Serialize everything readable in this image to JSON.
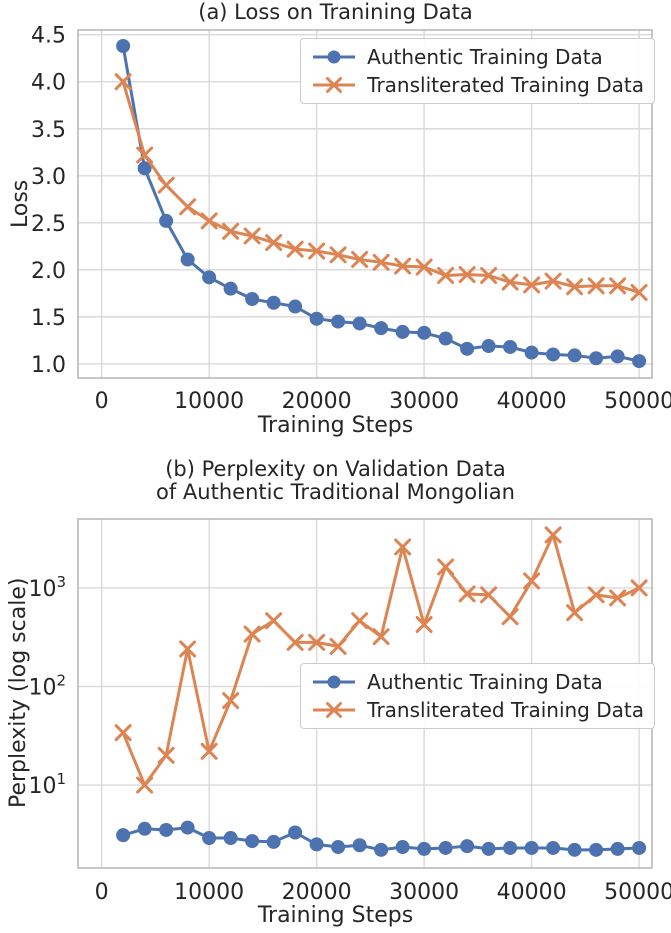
{
  "figure": {
    "background": "#ffffff",
    "text_color": "#262626",
    "grid_color": "#d9d9d9",
    "spine_color": "#b9b9b9"
  },
  "chart_data": [
    {
      "type": "line",
      "title": "(a) Loss on Tranining Data",
      "xlabel": "Training Steps",
      "ylabel": "Loss",
      "yscale": "linear",
      "grid": true,
      "legend_position": "upper right",
      "xlim": [
        -2200,
        51200
      ],
      "ylim": [
        0.85,
        4.55
      ],
      "xticks": [
        0,
        10000,
        20000,
        30000,
        40000,
        50000
      ],
      "yticks": [
        1.0,
        1.5,
        2.0,
        2.5,
        3.0,
        3.5,
        4.0,
        4.5
      ],
      "x": [
        2000,
        4000,
        6000,
        8000,
        10000,
        12000,
        14000,
        16000,
        18000,
        20000,
        22000,
        24000,
        26000,
        28000,
        30000,
        32000,
        34000,
        36000,
        38000,
        40000,
        42000,
        44000,
        46000,
        48000,
        50000
      ],
      "series": [
        {
          "name": "Authentic Training Data",
          "color": "#4C72B0",
          "marker": "circle",
          "values": [
            4.38,
            3.08,
            2.52,
            2.11,
            1.92,
            1.8,
            1.69,
            1.65,
            1.61,
            1.48,
            1.45,
            1.43,
            1.38,
            1.34,
            1.33,
            1.27,
            1.16,
            1.19,
            1.18,
            1.12,
            1.1,
            1.09,
            1.06,
            1.08,
            1.03
          ]
        },
        {
          "name": "Transliterated Training Data",
          "color": "#DD8452",
          "marker": "x",
          "values": [
            4.0,
            3.22,
            2.9,
            2.67,
            2.52,
            2.41,
            2.36,
            2.29,
            2.22,
            2.2,
            2.16,
            2.11,
            2.08,
            2.04,
            2.03,
            1.94,
            1.95,
            1.94,
            1.87,
            1.84,
            1.88,
            1.82,
            1.83,
            1.83,
            1.76
          ]
        }
      ]
    },
    {
      "type": "line",
      "title": "(b) Perplexity on Validation Data\nof Authentic Traditional Mongolian",
      "xlabel": "Training Steps",
      "ylabel": "Perplexity (log scale)",
      "yscale": "log",
      "grid": true,
      "legend_position": "center right",
      "xlim": [
        -2200,
        51200
      ],
      "ylim": [
        1.44,
        5000
      ],
      "xticks": [
        0,
        10000,
        20000,
        30000,
        40000,
        50000
      ],
      "yticks": [
        10,
        100,
        1000
      ],
      "x": [
        2000,
        4000,
        6000,
        8000,
        10000,
        12000,
        14000,
        16000,
        18000,
        20000,
        22000,
        24000,
        26000,
        28000,
        30000,
        32000,
        34000,
        36000,
        38000,
        40000,
        42000,
        44000,
        46000,
        48000,
        50000
      ],
      "series": [
        {
          "name": "Authentic Training Data",
          "color": "#4C72B0",
          "marker": "circle",
          "values": [
            3.1,
            3.6,
            3.5,
            3.7,
            2.9,
            2.9,
            2.7,
            2.65,
            3.3,
            2.5,
            2.35,
            2.45,
            2.2,
            2.35,
            2.25,
            2.3,
            2.4,
            2.25,
            2.3,
            2.3,
            2.3,
            2.2,
            2.2,
            2.25,
            2.3
          ]
        },
        {
          "name": "Transliterated Training Data",
          "color": "#DD8452",
          "marker": "x",
          "values": [
            34,
            10,
            20,
            240,
            22,
            72,
            340,
            465,
            280,
            280,
            255,
            465,
            320,
            2600,
            425,
            1630,
            870,
            850,
            510,
            1175,
            3450,
            560,
            850,
            790,
            1000
          ]
        }
      ]
    }
  ]
}
